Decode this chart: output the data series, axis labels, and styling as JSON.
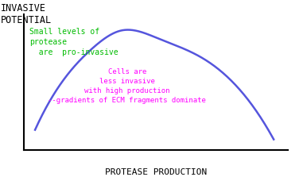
{
  "title_y": "INVASIVE\nPOTENTIAL",
  "title_x": "PROTEASE PRODUCTION",
  "curve_color": "#5555dd",
  "text1": "Small levels of\nprotease\n  are  pro-invasive",
  "text1_color": "#00bb00",
  "text2_line1": "Cells are",
  "text2_line2": "less invasive",
  "text2_line3": "with high production",
  "text2_line4": "--gradients of ECM fragments dominate",
  "text2_color": "#ff00ff",
  "bg_color": "#ffffff",
  "curve_lw": 1.8,
  "axis_color": "#000000",
  "axis_lw": 1.5
}
